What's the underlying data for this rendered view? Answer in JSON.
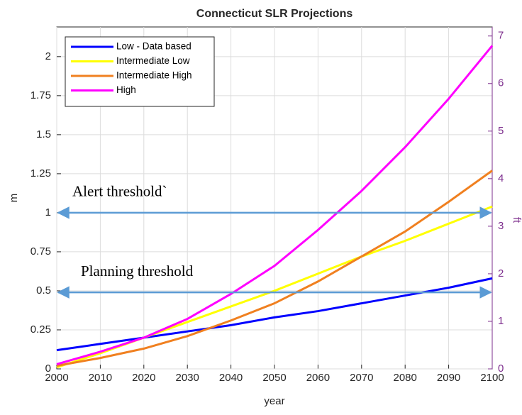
{
  "chart_data": {
    "type": "line",
    "title": "Connecticut SLR Projections",
    "x_label": "year",
    "y_label": "m",
    "y2_label": "ft",
    "x": [
      2000,
      2010,
      2020,
      2030,
      2040,
      2050,
      2060,
      2070,
      2080,
      2090,
      2100
    ],
    "series": [
      {
        "name": "Low - Data based",
        "color": "#0000ff",
        "values": [
          0.12,
          0.16,
          0.2,
          0.24,
          0.28,
          0.33,
          0.37,
          0.42,
          0.47,
          0.52,
          0.58
        ]
      },
      {
        "name": "Intermediate Low",
        "color": "#ffff00",
        "values": [
          0.01,
          0.1,
          0.2,
          0.3,
          0.4,
          0.5,
          0.61,
          0.72,
          0.82,
          0.93,
          1.04
        ]
      },
      {
        "name": "Intermediate High",
        "color": "#f08020",
        "values": [
          0.02,
          0.07,
          0.13,
          0.21,
          0.31,
          0.42,
          0.56,
          0.72,
          0.88,
          1.07,
          1.27
        ]
      },
      {
        "name": "High",
        "color": "#ff00ff",
        "values": [
          0.03,
          0.11,
          0.2,
          0.32,
          0.48,
          0.66,
          0.89,
          1.14,
          1.42,
          1.73,
          2.07
        ]
      }
    ],
    "xlim": [
      2000,
      2100
    ],
    "xticks": [
      2000,
      2010,
      2020,
      2030,
      2040,
      2050,
      2060,
      2070,
      2080,
      2090,
      2100
    ],
    "ylim": [
      0,
      2.19
    ],
    "yticks": [
      0,
      0.25,
      0.5,
      0.75,
      1,
      1.25,
      1.5,
      1.75,
      2
    ],
    "y2lim": [
      0,
      7.19
    ],
    "y2ticks": [
      0,
      1,
      2,
      3,
      4,
      5,
      6,
      7
    ],
    "y2_color": "#7e2f8e",
    "grid": true,
    "legend": "upper left",
    "annotations": [
      {
        "text": "Alert threshold`",
        "y": 1.0,
        "color": "#5b9bd5"
      },
      {
        "text": "Planning threshold",
        "y": 0.49,
        "color": "#5b9bd5"
      }
    ]
  }
}
